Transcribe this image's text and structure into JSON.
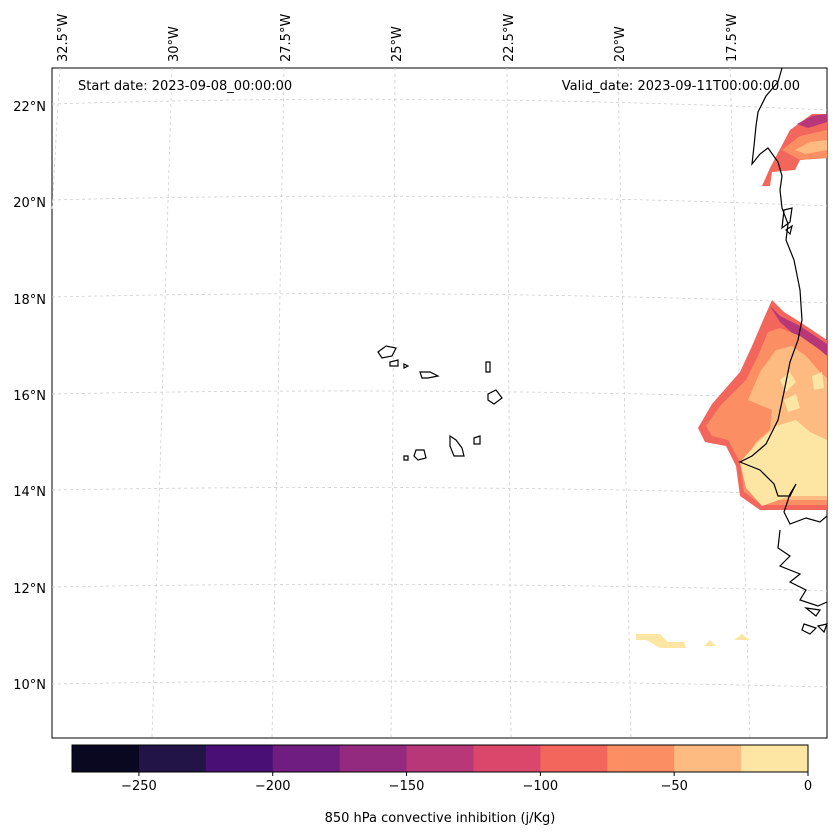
{
  "map": {
    "start_date": "Start date: 2023-09-08_00:00:00",
    "valid_date": "Valid_date: 2023-09-11T00:00:00.00",
    "lon_labels": [
      "32.5°W",
      "30°W",
      "27.5°W",
      "25°W",
      "22.5°W",
      "20°W",
      "17.5°W"
    ],
    "lat_labels": [
      "22°N",
      "20°N",
      "18°N",
      "16°N",
      "14°N",
      "12°N",
      "10°N"
    ],
    "region": "Cape Verde Islands and West African coast"
  },
  "colorbar": {
    "label": "850 hPa convective inhibition (j/Kg)",
    "ticks": [
      "−250",
      "−200",
      "−150",
      "−100",
      "−50",
      "0"
    ],
    "levels": [
      -275,
      -250,
      -225,
      -200,
      -175,
      -150,
      -125,
      -100,
      -75,
      -50,
      -25,
      0
    ],
    "colors": [
      "#0a0820",
      "#221447",
      "#4a0f75",
      "#6f1d81",
      "#932a80",
      "#b73779",
      "#db476a",
      "#f2665c",
      "#fc8e64",
      "#fdbb81",
      "#fde6a4"
    ]
  }
}
